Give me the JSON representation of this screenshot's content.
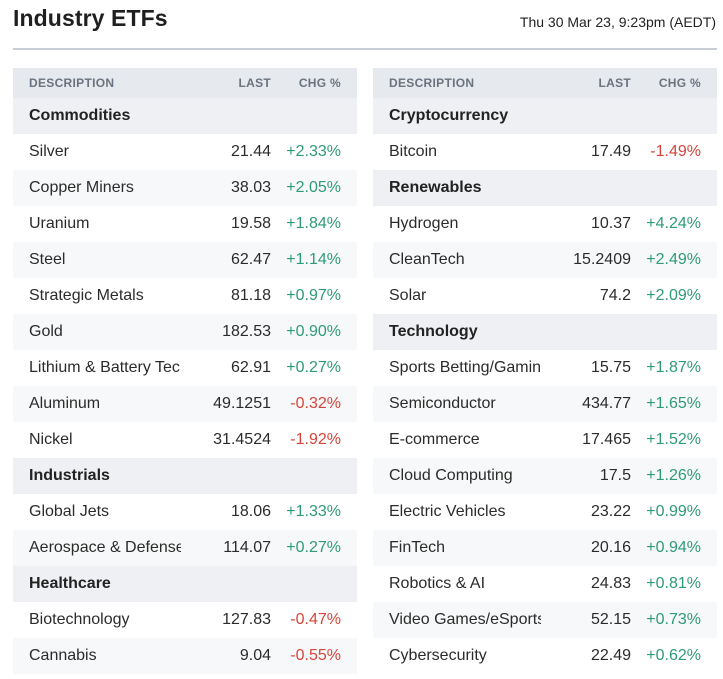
{
  "header": {
    "title": "Industry ETFs",
    "timestamp": "Thu 30 Mar 23, 9:23pm (AEDT)"
  },
  "columns": {
    "description": "DESCRIPTION",
    "last": "LAST",
    "change": "CHG %"
  },
  "panels": [
    {
      "rows": [
        {
          "type": "category",
          "name": "Commodities"
        },
        {
          "type": "item",
          "name": "Silver",
          "last": "21.44",
          "change": "+2.33%",
          "direction": "up"
        },
        {
          "type": "item",
          "name": "Copper Miners",
          "last": "38.03",
          "change": "+2.05%",
          "direction": "up"
        },
        {
          "type": "item",
          "name": "Uranium",
          "last": "19.58",
          "change": "+1.84%",
          "direction": "up"
        },
        {
          "type": "item",
          "name": "Steel",
          "last": "62.47",
          "change": "+1.14%",
          "direction": "up"
        },
        {
          "type": "item",
          "name": "Strategic Metals",
          "last": "81.18",
          "change": "+0.97%",
          "direction": "up"
        },
        {
          "type": "item",
          "name": "Gold",
          "last": "182.53",
          "change": "+0.90%",
          "direction": "up"
        },
        {
          "type": "item",
          "name": "Lithium & Battery Tech",
          "last": "62.91",
          "change": "+0.27%",
          "direction": "up"
        },
        {
          "type": "item",
          "name": "Aluminum",
          "last": "49.1251",
          "change": "-0.32%",
          "direction": "down"
        },
        {
          "type": "item",
          "name": "Nickel",
          "last": "31.4524",
          "change": "-1.92%",
          "direction": "down"
        },
        {
          "type": "category",
          "name": "Industrials"
        },
        {
          "type": "item",
          "name": "Global Jets",
          "last": "18.06",
          "change": "+1.33%",
          "direction": "up"
        },
        {
          "type": "item",
          "name": "Aerospace & Defense",
          "last": "114.07",
          "change": "+0.27%",
          "direction": "up"
        },
        {
          "type": "category",
          "name": "Healthcare"
        },
        {
          "type": "item",
          "name": "Biotechnology",
          "last": "127.83",
          "change": "-0.47%",
          "direction": "down"
        },
        {
          "type": "item",
          "name": "Cannabis",
          "last": "9.04",
          "change": "-0.55%",
          "direction": "down"
        }
      ]
    },
    {
      "rows": [
        {
          "type": "category",
          "name": "Cryptocurrency"
        },
        {
          "type": "item",
          "name": "Bitcoin",
          "last": "17.49",
          "change": "-1.49%",
          "direction": "down"
        },
        {
          "type": "category",
          "name": "Renewables"
        },
        {
          "type": "item",
          "name": "Hydrogen",
          "last": "10.37",
          "change": "+4.24%",
          "direction": "up"
        },
        {
          "type": "item",
          "name": "CleanTech",
          "last": "15.2409",
          "change": "+2.49%",
          "direction": "up"
        },
        {
          "type": "item",
          "name": "Solar",
          "last": "74.2",
          "change": "+2.09%",
          "direction": "up"
        },
        {
          "type": "category",
          "name": "Technology"
        },
        {
          "type": "item",
          "name": "Sports Betting/Gaming",
          "last": "15.75",
          "change": "+1.87%",
          "direction": "up"
        },
        {
          "type": "item",
          "name": "Semiconductor",
          "last": "434.77",
          "change": "+1.65%",
          "direction": "up"
        },
        {
          "type": "item",
          "name": "E-commerce",
          "last": "17.465",
          "change": "+1.52%",
          "direction": "up"
        },
        {
          "type": "item",
          "name": "Cloud Computing",
          "last": "17.5",
          "change": "+1.26%",
          "direction": "up"
        },
        {
          "type": "item",
          "name": "Electric Vehicles",
          "last": "23.22",
          "change": "+0.99%",
          "direction": "up"
        },
        {
          "type": "item",
          "name": "FinTech",
          "last": "20.16",
          "change": "+0.94%",
          "direction": "up"
        },
        {
          "type": "item",
          "name": "Robotics & AI",
          "last": "24.83",
          "change": "+0.81%",
          "direction": "up"
        },
        {
          "type": "item",
          "name": "Video Games/eSports",
          "last": "52.15",
          "change": "+0.73%",
          "direction": "up"
        },
        {
          "type": "item",
          "name": "Cybersecurity",
          "last": "22.49",
          "change": "+0.62%",
          "direction": "up"
        }
      ]
    }
  ],
  "colors": {
    "up": "#2e9a76",
    "down": "#d9443a"
  }
}
